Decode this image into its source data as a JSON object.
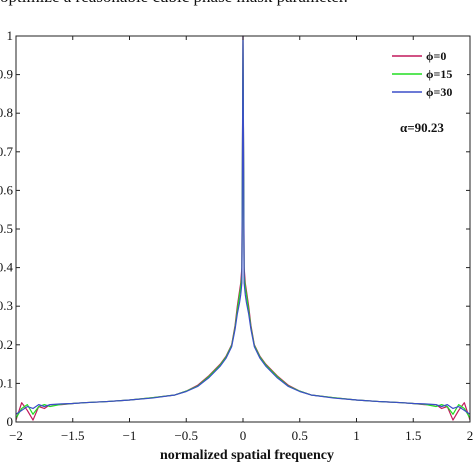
{
  "caption": "optimize a reasonable cubic phase mask parameter.",
  "chart_data": {
    "type": "line",
    "xlabel": "normalized spatial frequency",
    "ylabel": "",
    "xlim": [
      -2,
      2
    ],
    "ylim": [
      0,
      1
    ],
    "xticks": [
      -2,
      -1.5,
      -1,
      -0.5,
      0,
      0.5,
      1,
      1.5,
      2
    ],
    "xtick_labels": [
      "−2",
      "−1.5",
      "−1",
      "−0.5",
      "0",
      "0.5",
      "1",
      "1.5",
      "2"
    ],
    "yticks": [
      0,
      0.1,
      0.2,
      0.3,
      0.4,
      0.5,
      0.6,
      0.7,
      0.8,
      0.9,
      1
    ],
    "ytick_labels": [
      "0",
      "0.1",
      "0.2",
      "0.3",
      "0.4",
      "0.5",
      "0.6",
      "0.7",
      "0.8",
      "0.9",
      "1"
    ],
    "grid": false,
    "legend_position": "top-right",
    "annotation": "α=90.23",
    "series": [
      {
        "name": "ϕ=0",
        "color": "#c2185b",
        "x": [
          -2,
          -1.95,
          -1.9,
          -1.85,
          -1.8,
          -1.75,
          -1.7,
          -1.6,
          -1.5,
          -1.4,
          -1.2,
          -1.0,
          -0.8,
          -0.6,
          -0.5,
          -0.4,
          -0.3,
          -0.2,
          -0.15,
          -0.1,
          -0.07,
          -0.05,
          -0.03,
          -0.02,
          -0.01,
          0,
          0.01,
          0.02,
          0.03,
          0.05,
          0.07,
          0.1,
          0.15,
          0.2,
          0.3,
          0.4,
          0.5,
          0.6,
          0.8,
          1.0,
          1.2,
          1.4,
          1.5,
          1.6,
          1.7,
          1.75,
          1.8,
          1.85,
          1.9,
          1.95,
          2
        ],
        "y": [
          0.005,
          0.05,
          0.03,
          0.005,
          0.04,
          0.035,
          0.045,
          0.045,
          0.048,
          0.05,
          0.053,
          0.057,
          0.063,
          0.07,
          0.08,
          0.095,
          0.12,
          0.15,
          0.17,
          0.2,
          0.25,
          0.3,
          0.34,
          0.36,
          0.4,
          1.0,
          0.4,
          0.36,
          0.34,
          0.3,
          0.25,
          0.2,
          0.17,
          0.15,
          0.12,
          0.095,
          0.08,
          0.07,
          0.063,
          0.057,
          0.053,
          0.05,
          0.048,
          0.045,
          0.045,
          0.035,
          0.04,
          0.005,
          0.03,
          0.05,
          0.005
        ]
      },
      {
        "name": "ϕ=15",
        "color": "#22dd22",
        "x": [
          -2,
          -1.95,
          -1.9,
          -1.85,
          -1.8,
          -1.75,
          -1.7,
          -1.6,
          -1.5,
          -1.4,
          -1.2,
          -1.0,
          -0.8,
          -0.6,
          -0.5,
          -0.4,
          -0.3,
          -0.2,
          -0.15,
          -0.1,
          -0.07,
          -0.05,
          -0.03,
          -0.02,
          -0.01,
          0,
          0.01,
          0.02,
          0.03,
          0.05,
          0.07,
          0.1,
          0.15,
          0.2,
          0.3,
          0.4,
          0.5,
          0.6,
          0.8,
          1.0,
          1.2,
          1.4,
          1.5,
          1.6,
          1.7,
          1.75,
          1.8,
          1.85,
          1.9,
          1.95,
          2
        ],
        "y": [
          0.01,
          0.035,
          0.045,
          0.02,
          0.04,
          0.045,
          0.04,
          0.046,
          0.048,
          0.05,
          0.053,
          0.057,
          0.063,
          0.07,
          0.08,
          0.093,
          0.118,
          0.148,
          0.168,
          0.198,
          0.245,
          0.29,
          0.33,
          0.35,
          0.38,
          0.99,
          0.38,
          0.35,
          0.33,
          0.29,
          0.245,
          0.198,
          0.168,
          0.148,
          0.118,
          0.093,
          0.08,
          0.07,
          0.063,
          0.057,
          0.053,
          0.05,
          0.048,
          0.046,
          0.04,
          0.045,
          0.04,
          0.02,
          0.045,
          0.035,
          0.01
        ]
      },
      {
        "name": "ϕ=30",
        "color": "#3b4ec8",
        "x": [
          -2,
          -1.95,
          -1.9,
          -1.85,
          -1.8,
          -1.75,
          -1.7,
          -1.6,
          -1.5,
          -1.4,
          -1.2,
          -1.0,
          -0.8,
          -0.6,
          -0.5,
          -0.4,
          -0.3,
          -0.2,
          -0.15,
          -0.1,
          -0.07,
          -0.05,
          -0.03,
          -0.02,
          -0.01,
          0,
          0.01,
          0.02,
          0.03,
          0.05,
          0.07,
          0.1,
          0.15,
          0.2,
          0.3,
          0.4,
          0.5,
          0.6,
          0.8,
          1.0,
          1.2,
          1.4,
          1.5,
          1.6,
          1.7,
          1.75,
          1.8,
          1.85,
          1.9,
          1.95,
          2
        ],
        "y": [
          0.02,
          0.03,
          0.04,
          0.035,
          0.045,
          0.04,
          0.045,
          0.047,
          0.048,
          0.05,
          0.053,
          0.057,
          0.062,
          0.07,
          0.079,
          0.092,
          0.115,
          0.145,
          0.165,
          0.195,
          0.24,
          0.28,
          0.31,
          0.33,
          0.36,
          1.0,
          0.36,
          0.33,
          0.31,
          0.28,
          0.24,
          0.195,
          0.165,
          0.145,
          0.115,
          0.092,
          0.079,
          0.07,
          0.062,
          0.057,
          0.053,
          0.05,
          0.048,
          0.047,
          0.045,
          0.04,
          0.045,
          0.035,
          0.04,
          0.03,
          0.02
        ]
      }
    ]
  }
}
